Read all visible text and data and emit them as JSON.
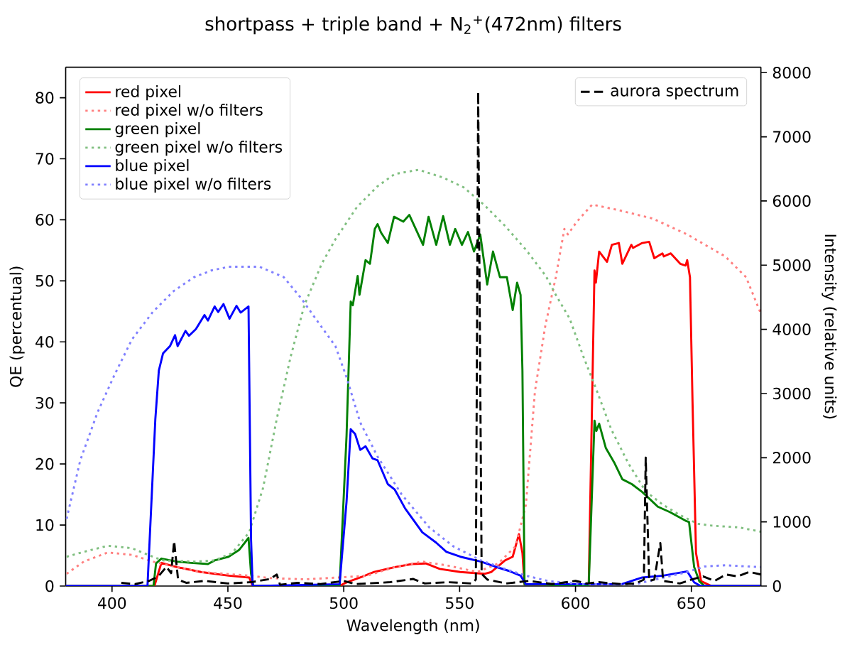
{
  "chart_data": {
    "type": "line",
    "title": "shortpass + triple band + N$_{2}$$^{+}$(472nm) filters",
    "xlabel": "Wavelength (nm)",
    "ylabel": "QE (percentual)",
    "y2label": "Intensity (relative units)",
    "xlim": [
      380,
      680
    ],
    "xticks": [
      400,
      450,
      500,
      550,
      600,
      650
    ],
    "ylim": [
      0,
      85
    ],
    "yticks": [
      0,
      10,
      20,
      30,
      40,
      50,
      60,
      70,
      80
    ],
    "y2lim": [
      0,
      8085
    ],
    "y2ticks": [
      0,
      1000,
      2000,
      3000,
      4000,
      5000,
      6000,
      7000,
      8000
    ],
    "legend": "top left",
    "series": [
      {
        "name": "red pixel",
        "color": "#ff0000",
        "line_style": "solid",
        "x": [
          380,
          418.3,
          421.3,
          428,
          438.4,
          450.3,
          459.2,
          460.7,
          498,
          501.2,
          507.1,
          513.1,
          522,
          529.5,
          535.4,
          541.4,
          550.3,
          560.7,
          563.7,
          569.6,
          572.9,
          575.6,
          577.1,
          578,
          605.7,
          608.2,
          608.8,
          610.2,
          613.6,
          615.7,
          618.7,
          620.2,
          624.1,
          624.8,
          628.8,
          631.8,
          634,
          637.5,
          638.1,
          641.1,
          645.2,
          647.5,
          648.2,
          649.4,
          650.5,
          652,
          654.2,
          658.7,
          680
        ],
        "values": [
          0,
          0,
          3.8,
          3.1,
          2.3,
          1.7,
          1.4,
          0,
          0,
          0.6,
          1.4,
          2.3,
          3.1,
          3.6,
          3.7,
          2.8,
          2.3,
          2.0,
          2.3,
          4.2,
          4.8,
          8.5,
          5.4,
          0.3,
          0,
          51.7,
          49.7,
          54.8,
          53.1,
          55.9,
          56.2,
          52.8,
          55.9,
          55.4,
          56.2,
          56.4,
          53.7,
          54.5,
          54,
          54.5,
          52.8,
          52.5,
          53.4,
          50.6,
          30.2,
          5.4,
          0.8,
          0,
          0
        ]
      },
      {
        "name": "red pixel w/o filters",
        "color": "#ff8080",
        "line_style": "dotted",
        "x": [
          380.4,
          387.8,
          398.2,
          408.6,
          417.6,
          428,
          438.4,
          459.2,
          468.2,
          483,
          497.9,
          510.1,
          522,
          533.9,
          544.3,
          557.7,
          566.7,
          574.1,
          578.6,
          582.5,
          587,
          591.5,
          595.2,
          596.7,
          600.4,
          607.2,
          618.4,
          633.3,
          648.2,
          664.6,
          673.6,
          680
        ],
        "values": [
          2.0,
          4.0,
          5.5,
          5.1,
          4.0,
          3.1,
          2.3,
          1.7,
          1.3,
          1.1,
          1.4,
          1.7,
          3.1,
          4.0,
          3.4,
          2.3,
          3.7,
          6.5,
          13.3,
          31.9,
          42.7,
          50.6,
          58.5,
          57.6,
          59.6,
          62.5,
          61.6,
          60.2,
          57.6,
          54,
          50.6,
          44.6
        ]
      },
      {
        "name": "green pixel",
        "color": "#008000",
        "line_style": "solid",
        "x": [
          380,
          417.9,
          419,
          421.3,
          428,
          434,
          441.4,
          444.3,
          450.3,
          454.8,
          457.7,
          458.9,
          460,
          461,
          498.2,
          501.2,
          503,
          503.9,
          506,
          506.8,
          509.4,
          511.3,
          513.4,
          514.6,
          516.1,
          519,
          521.7,
          525.7,
          528.3,
          534.2,
          536.6,
          539.9,
          542.9,
          545.8,
          548.1,
          551,
          553.6,
          556.2,
          558.9,
          561.9,
          564.4,
          567.4,
          570.4,
          572.9,
          574.8,
          576.3,
          577.1,
          578,
          605.7,
          608.2,
          609,
          610.2,
          613.1,
          616.9,
          620.2,
          624.3,
          628.8,
          632.5,
          635.5,
          640.8,
          647.5,
          649,
          651.2,
          653.4,
          655.7,
          680
        ],
        "values": [
          0,
          0,
          3.7,
          4.5,
          4.0,
          3.8,
          3.6,
          4.2,
          4.8,
          5.9,
          7.3,
          7.9,
          2,
          0,
          0,
          24.6,
          46.6,
          46,
          50.8,
          47.7,
          53.4,
          52.8,
          58.5,
          59.3,
          57.9,
          56.2,
          60.5,
          59.7,
          60.8,
          55.9,
          60.5,
          55.9,
          60.6,
          55.9,
          58.5,
          55.9,
          58,
          54.8,
          57.6,
          49.4,
          54.8,
          50.6,
          50.6,
          45.2,
          49.7,
          47.7,
          35.3,
          0.3,
          0,
          27.1,
          25.4,
          26.6,
          22.6,
          20.1,
          17.5,
          16.7,
          15.4,
          14.1,
          13,
          12.1,
          10.7,
          10.5,
          3.1,
          0.8,
          0,
          0
        ]
      },
      {
        "name": "green pixel w/o filters",
        "color": "#80bf80",
        "line_style": "dotted",
        "x": [
          380.4,
          387.8,
          398.2,
          408.6,
          417.6,
          422,
          435.4,
          444.3,
          451.8,
          459.2,
          465.2,
          471.1,
          477.1,
          483,
          490.5,
          496.4,
          505.7,
          514.6,
          522,
          532.4,
          542.9,
          551.8,
          560.7,
          569.6,
          578.6,
          587.2,
          591.5,
          597.5,
          603.4,
          608.7,
          615.4,
          622.8,
          630.3,
          637.8,
          645.2,
          652.7,
          658.7,
          670.6,
          680
        ],
        "values": [
          4.8,
          5.6,
          6.6,
          6.2,
          4.8,
          4.2,
          4.0,
          4.2,
          5.4,
          8.8,
          16.1,
          27.4,
          37.6,
          46,
          52.8,
          56.8,
          62.1,
          65.5,
          67.5,
          68.2,
          66.9,
          65.3,
          62.4,
          59,
          55.1,
          50.8,
          47.7,
          43.8,
          37.6,
          32.5,
          25.7,
          20.1,
          15.5,
          13.3,
          11.6,
          10.2,
          9.9,
          9.6,
          8.9
        ]
      },
      {
        "name": "blue pixel",
        "color": "#0000ff",
        "line_style": "solid",
        "x": [
          380,
          415.3,
          418.7,
          420.2,
          422,
          425,
          427.2,
          428.3,
          431.7,
          433.2,
          436.2,
          439.9,
          441.4,
          444.3,
          445.8,
          448.1,
          450.7,
          453.7,
          455.5,
          458.9,
          460,
          460.7,
          498.2,
          501.2,
          503,
          504.9,
          507.1,
          509.4,
          512.4,
          514.6,
          519,
          522,
          526.5,
          533.9,
          539.9,
          544.3,
          550.3,
          559.2,
          565.2,
          571.1,
          576.3,
          578.6,
          619.9,
          628.8,
          637.8,
          648.2,
          651.2,
          654,
          680
        ],
        "values": [
          0,
          0,
          27.4,
          35.3,
          38.1,
          39.3,
          41.1,
          39.3,
          41.8,
          41,
          42.1,
          44.4,
          43.5,
          45.8,
          44.9,
          46.2,
          43.8,
          45.9,
          44.8,
          45.8,
          7.6,
          0,
          0.3,
          13.8,
          25.7,
          24.9,
          22.3,
          22.9,
          20.9,
          20.6,
          16.7,
          15.8,
          12.7,
          8.8,
          7.1,
          5.6,
          4.8,
          4.0,
          3.2,
          2.5,
          1.7,
          0.3,
          0.3,
          1.4,
          1.7,
          2.4,
          0.6,
          0,
          0
        ]
      },
      {
        "name": "blue pixel w/o filters",
        "color": "#8080ff",
        "line_style": "dotted",
        "x": [
          380.4,
          386.3,
          393.8,
          401.2,
          408.6,
          417.6,
          426.5,
          435.4,
          442.9,
          450.3,
          463.7,
          474.1,
          481.5,
          489,
          496.4,
          501.2,
          507.1,
          514.6,
          525,
          536.9,
          547.3,
          559.2,
          569.6,
          578.6,
          588.5,
          603.4,
          625.8,
          648.2,
          655.7,
          664.6,
          680
        ],
        "values": [
          11,
          20.6,
          28.5,
          34.7,
          40.4,
          44.9,
          48.3,
          50.6,
          51.7,
          52.3,
          52.3,
          50.6,
          47.2,
          43.2,
          39.3,
          34.2,
          26.8,
          21.2,
          15,
          9.6,
          6.5,
          4.2,
          2.8,
          1.7,
          0.8,
          0.3,
          0.3,
          2.3,
          3.2,
          3.4,
          3.1
        ]
      },
      {
        "name": "aurora spectrum",
        "color": "#000000",
        "line_style": "dashed",
        "axis": "y2",
        "x": [
          404,
          410,
          416,
          420,
          423.5,
          425.5,
          426.8,
          428.5,
          432,
          440,
          450,
          460,
          468.2,
          471.1,
          472.5,
          480,
          490,
          500,
          505,
          520,
          530,
          535,
          545,
          555,
          557,
          558,
          559.5,
          562,
          570,
          580,
          590,
          600,
          605,
          610,
          620,
          626,
          629.5,
          630.3,
          631.8,
          634,
          636.6,
          637.8,
          645,
          650,
          655,
          660,
          665,
          670,
          675,
          680
        ],
        "values": [
          50,
          30,
          80,
          150,
          300,
          200,
          700,
          100,
          50,
          80,
          40,
          60,
          110,
          180,
          20,
          50,
          30,
          80,
          30,
          60,
          110,
          40,
          60,
          40,
          100,
          7700,
          190,
          100,
          40,
          80,
          30,
          80,
          40,
          60,
          30,
          40,
          100,
          2000,
          80,
          100,
          670,
          80,
          40,
          100,
          150,
          80,
          180,
          150,
          220,
          180
        ]
      }
    ]
  }
}
